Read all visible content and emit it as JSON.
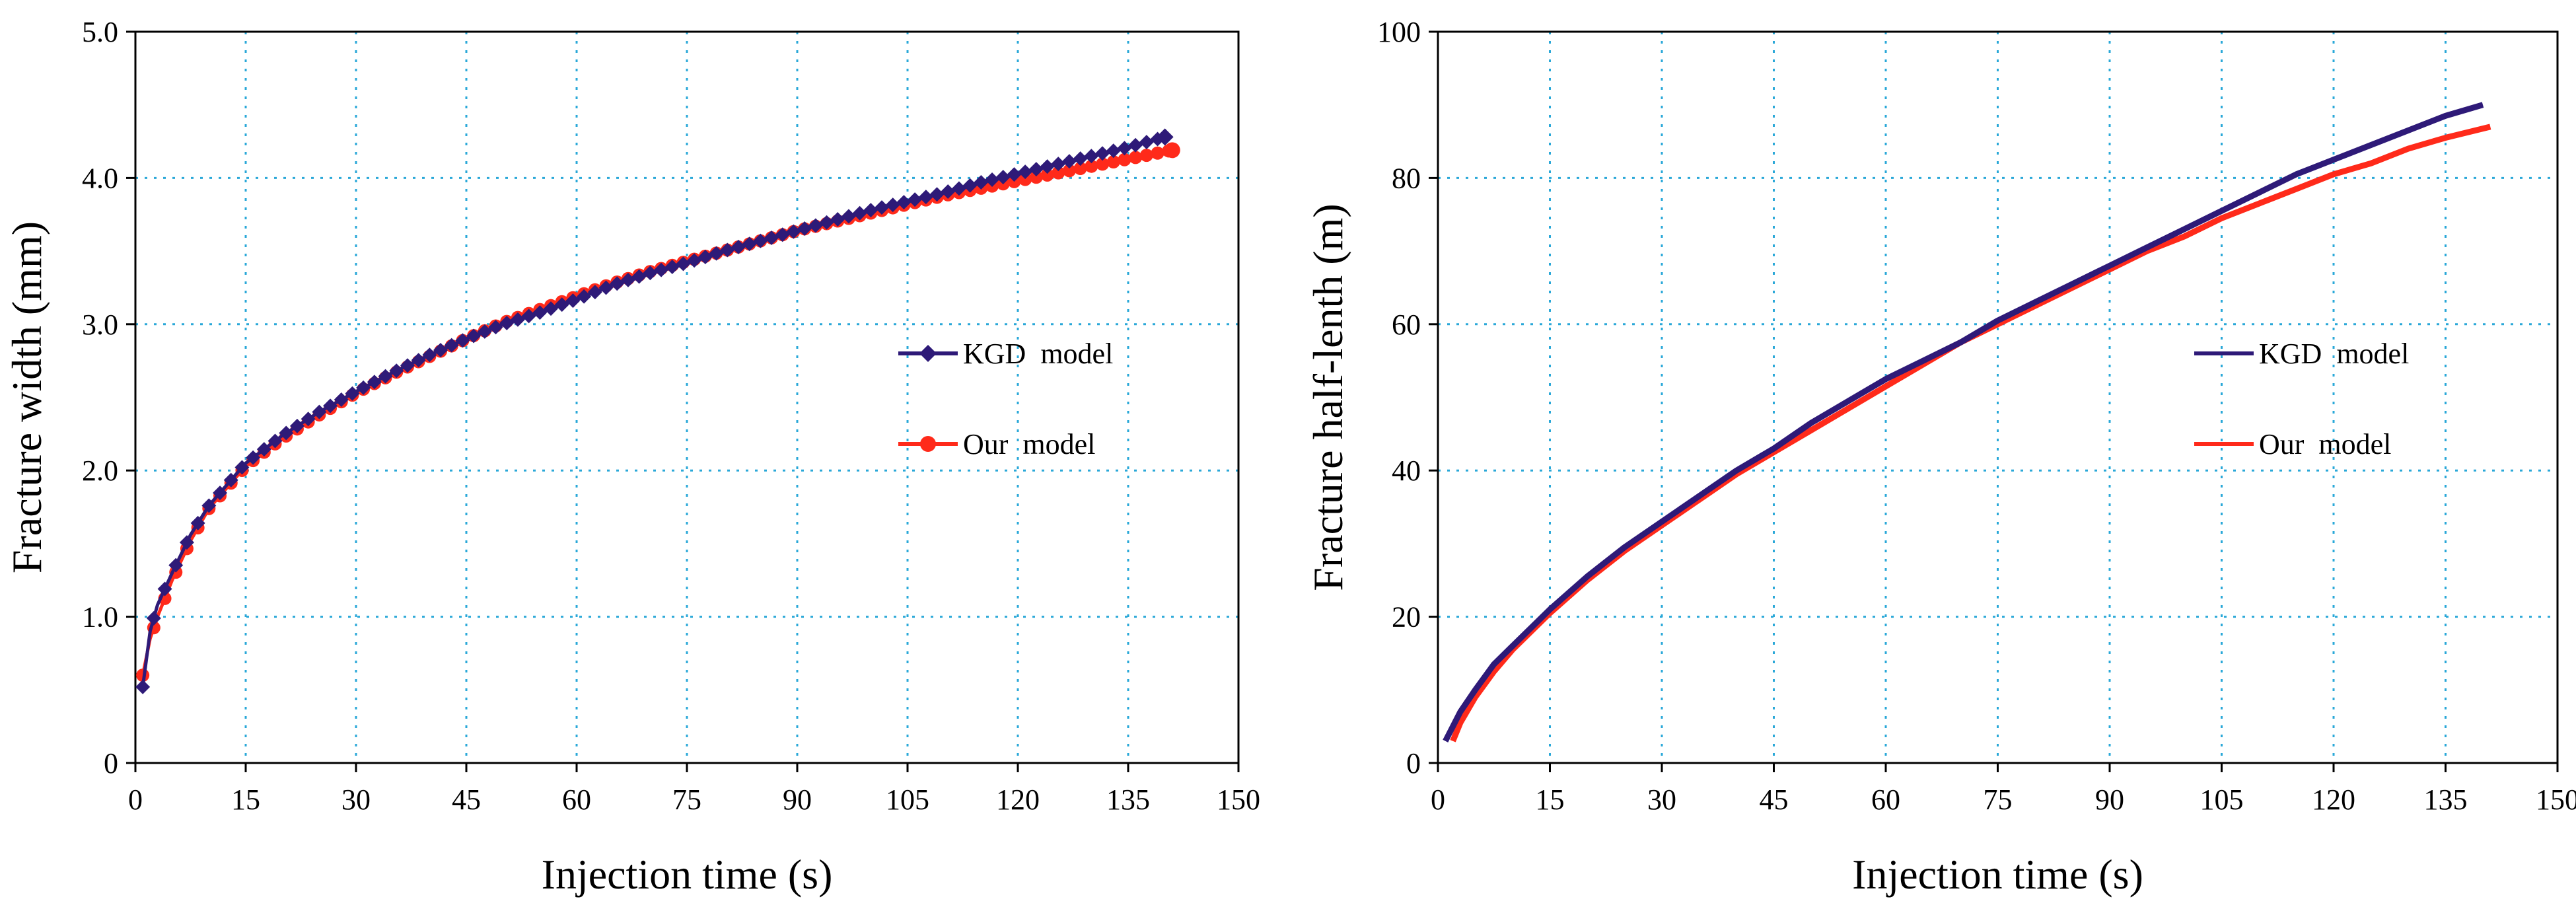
{
  "colors": {
    "kgd": "#2E1A78",
    "ours": "#FF2A1A",
    "grid": "#2AA8D8",
    "axis": "#000000"
  },
  "chart_data": [
    {
      "type": "line",
      "title": "",
      "xlabel": "Injection time (s)",
      "ylabel": "Fracture width (mm)",
      "xlim": [
        0,
        150
      ],
      "ylim": [
        0,
        5.0
      ],
      "xticks": [
        0,
        15,
        30,
        45,
        60,
        75,
        90,
        105,
        120,
        135,
        150
      ],
      "xtick_labels": [
        "0",
        "15",
        "30",
        "45",
        "60",
        "75",
        "90",
        "105",
        "120",
        "135",
        "150"
      ],
      "yticks": [
        0,
        1.0,
        2.0,
        3.0,
        4.0,
        5.0
      ],
      "ytick_labels": [
        "0",
        "1.0",
        "2.0",
        "3.0",
        "4.0",
        "5.0"
      ],
      "grid": true,
      "legend_position": "right-middle",
      "series": [
        {
          "name": "KGD  model",
          "marker": "diamond",
          "x": [
            1,
            2,
            3,
            5,
            7.5,
            10,
            15,
            20,
            25,
            30,
            35,
            40,
            45,
            50,
            55,
            60,
            65,
            70,
            75,
            80,
            85,
            90,
            95,
            100,
            105,
            110,
            115,
            120,
            125,
            130,
            135,
            140
          ],
          "y": [
            0.52,
            0.9,
            1.08,
            1.3,
            1.56,
            1.76,
            2.05,
            2.24,
            2.4,
            2.54,
            2.67,
            2.79,
            2.9,
            3.0,
            3.08,
            3.17,
            3.27,
            3.35,
            3.42,
            3.5,
            3.57,
            3.64,
            3.71,
            3.78,
            3.84,
            3.9,
            3.97,
            4.03,
            4.09,
            4.15,
            4.21,
            4.28
          ]
        },
        {
          "name": "Our  model",
          "marker": "circle",
          "x": [
            1,
            2,
            3,
            5,
            7.5,
            10,
            15,
            20,
            25,
            30,
            35,
            40,
            45,
            50,
            55,
            60,
            65,
            70,
            75,
            80,
            85,
            90,
            95,
            100,
            105,
            110,
            115,
            120,
            125,
            130,
            135,
            141
          ],
          "y": [
            0.6,
            0.85,
            1.0,
            1.25,
            1.52,
            1.74,
            2.03,
            2.22,
            2.38,
            2.53,
            2.66,
            2.78,
            2.9,
            3.01,
            3.1,
            3.19,
            3.28,
            3.36,
            3.43,
            3.5,
            3.57,
            3.64,
            3.7,
            3.76,
            3.82,
            3.88,
            3.93,
            3.98,
            4.03,
            4.08,
            4.13,
            4.19
          ]
        }
      ]
    },
    {
      "type": "line",
      "title": "",
      "xlabel": "Injection time (s)",
      "ylabel": "Fracture half-lenth (m)",
      "xlim": [
        0,
        150
      ],
      "ylim": [
        0,
        100
      ],
      "xticks": [
        0,
        15,
        30,
        45,
        60,
        75,
        90,
        105,
        120,
        135,
        150
      ],
      "xtick_labels": [
        "0",
        "15",
        "30",
        "45",
        "60",
        "75",
        "90",
        "105",
        "120",
        "135",
        "150"
      ],
      "yticks": [
        0,
        20,
        40,
        60,
        80,
        100
      ],
      "ytick_labels": [
        "0",
        "20",
        "40",
        "60",
        "80",
        "100"
      ],
      "grid": true,
      "legend_position": "right-middle",
      "series": [
        {
          "name": "KGD  model",
          "marker": "none",
          "x": [
            1,
            3,
            5,
            7.5,
            10,
            15,
            20,
            25,
            30,
            35,
            40,
            45,
            50,
            55,
            60,
            65,
            70,
            75,
            80,
            85,
            90,
            95,
            100,
            105,
            110,
            115,
            120,
            125,
            130,
            135,
            140
          ],
          "y": [
            3,
            7,
            10,
            13.5,
            16,
            21,
            25.5,
            29.5,
            33,
            36.5,
            40,
            43,
            46.5,
            49.5,
            52.5,
            55,
            57.5,
            60.5,
            63,
            65.5,
            68,
            70.5,
            73,
            75.5,
            78,
            80.5,
            82.5,
            84.5,
            86.5,
            88.5,
            90
          ]
        },
        {
          "name": "Our  model",
          "marker": "none",
          "x": [
            2,
            3,
            5,
            7.5,
            10,
            15,
            20,
            25,
            30,
            35,
            40,
            45,
            50,
            55,
            60,
            65,
            70,
            75,
            80,
            85,
            90,
            95,
            100,
            105,
            110,
            115,
            120,
            125,
            130,
            135,
            141
          ],
          "y": [
            3,
            5.5,
            9,
            12.5,
            15.5,
            20.5,
            25,
            29,
            32.5,
            36,
            39.5,
            42.5,
            45.5,
            48.5,
            51.5,
            54.5,
            57.5,
            60,
            62.5,
            65,
            67.5,
            70,
            72,
            74.5,
            76.5,
            78.5,
            80.5,
            82,
            84,
            85.5,
            87
          ]
        }
      ]
    }
  ]
}
